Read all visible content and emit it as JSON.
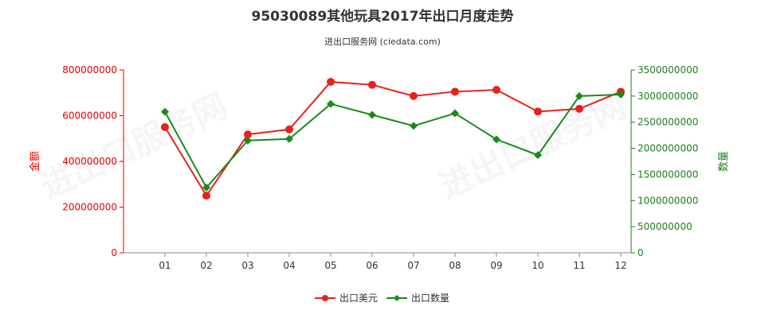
{
  "chart_data": {
    "type": "line",
    "title": "95030089其他玩具2017年出口月度走势",
    "subtitle": "进出口服务网 (ciedata.com)",
    "categories": [
      "01",
      "02",
      "03",
      "04",
      "05",
      "06",
      "07",
      "08",
      "09",
      "10",
      "11",
      "12"
    ],
    "y_left": {
      "label": "金额",
      "range": [
        0,
        800000000
      ],
      "ticks": [
        "0",
        "200000000",
        "400000000",
        "600000000",
        "800000000"
      ],
      "color": "#e60000"
    },
    "y_right": {
      "label": "数量",
      "range": [
        0,
        3500000000
      ],
      "ticks": [
        "0",
        "500000000",
        "1000000000",
        "1500000000",
        "2000000000",
        "2500000000",
        "3000000000",
        "3500000000"
      ],
      "color": "#1a7f1a"
    },
    "series": [
      {
        "name": "出口美元",
        "axis": "left",
        "color": "#e8211d",
        "values": [
          550000000,
          250000000,
          518000000,
          540000000,
          748000000,
          735000000,
          686000000,
          705000000,
          713000000,
          618000000,
          630000000,
          705000000
        ]
      },
      {
        "name": "出口数量",
        "axis": "right",
        "color": "#1a8a1a",
        "values": [
          2700000000,
          1250000000,
          2150000000,
          2180000000,
          2850000000,
          2640000000,
          2430000000,
          2670000000,
          2170000000,
          1870000000,
          3000000000,
          3030000000
        ]
      }
    ],
    "grid": false,
    "legend_position": "bottom-center"
  }
}
